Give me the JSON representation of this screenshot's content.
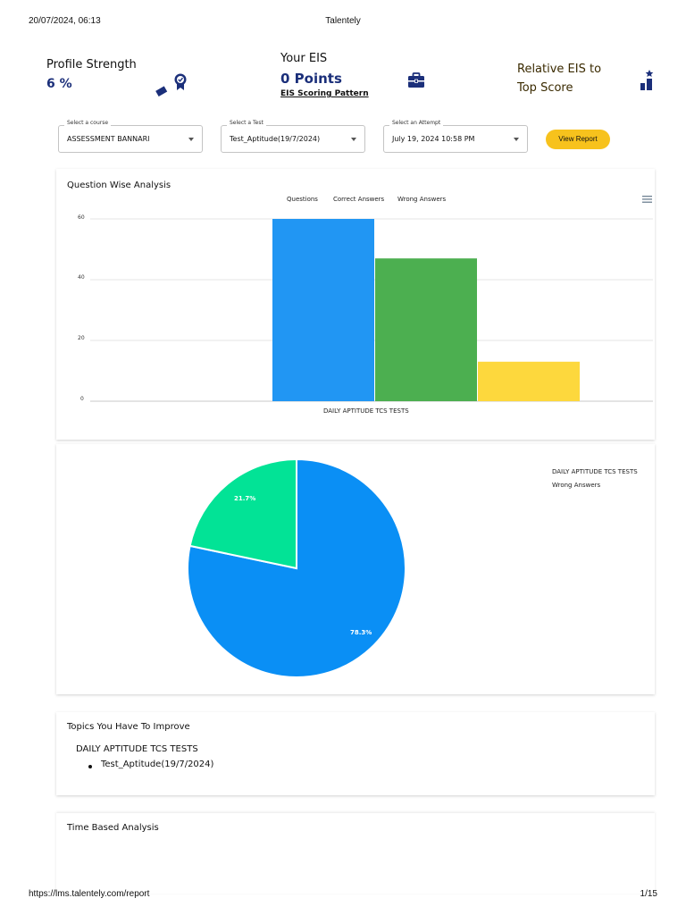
{
  "print": {
    "timestamp": "20/07/2024, 06:13",
    "title": "Talentely",
    "url": "https://lms.talentely.com/report",
    "page": "1/15"
  },
  "stats": {
    "profile": {
      "label": "Profile Strength",
      "value": "6 %",
      "icon": "ribbon-badge-icon"
    },
    "eis": {
      "label": "Your EIS",
      "value": "0 Points",
      "link": "EIS Scoring Pattern",
      "icon": "briefcase-icon"
    },
    "relative": {
      "line1": "Relative EIS to",
      "line2": "Top Score",
      "icon": "podium-icon"
    }
  },
  "filters": {
    "course": {
      "label": "Select a course",
      "value": "ASSESSMENT BANNARI"
    },
    "test": {
      "label": "Select a Test",
      "value": "Test_Aptitude(19/7/2024)"
    },
    "attempt": {
      "label": "Select an Attempt",
      "value": "July 19, 2024 10:58 PM"
    },
    "button": "View Report"
  },
  "question_analysis": {
    "title": "Question Wise Analysis",
    "menu_icon": "hamburger-menu-icon",
    "legend": [
      "Questions",
      "Correct Answers",
      "Wrong Answers"
    ],
    "ticks": [
      "60",
      "40",
      "20",
      "0"
    ],
    "category": "DAILY APTITUDE TCS TESTS"
  },
  "pie": {
    "legend": [
      "DAILY APTITUDE TCS TESTS",
      "Wrong Answers"
    ],
    "labels": [
      "21.7%",
      "78.3%"
    ]
  },
  "topics": {
    "title": "Topics You Have To Improve",
    "heading": "DAILY APTITUDE TCS TESTS",
    "items": [
      "Test_Aptitude(19/7/2024)"
    ]
  },
  "time_analysis": {
    "title": "Time Based Analysis"
  },
  "colors": {
    "questions": "#2196f3",
    "correct": "#4caf50",
    "wrong": "#fdd83d",
    "pie_large": "#0a8ff5",
    "pie_small": "#02e396",
    "accent": "#1b2f7a",
    "button": "#f7c21d"
  },
  "chart_data": [
    {
      "type": "bar",
      "title": "Question Wise Analysis",
      "categories": [
        "DAILY APTITUDE TCS TESTS"
      ],
      "series": [
        {
          "name": "Questions",
          "values": [
            60
          ]
        },
        {
          "name": "Correct Answers",
          "values": [
            47
          ]
        },
        {
          "name": "Wrong Answers",
          "values": [
            13
          ]
        }
      ],
      "ylim": [
        0,
        60
      ],
      "yticks": [
        0,
        20,
        40,
        60
      ],
      "grid": true,
      "legend": "top-center"
    },
    {
      "type": "pie",
      "labels": [
        "DAILY APTITUDE TCS TESTS",
        "Wrong Answers"
      ],
      "values": [
        78.3,
        21.7
      ],
      "legend": "right"
    }
  ]
}
